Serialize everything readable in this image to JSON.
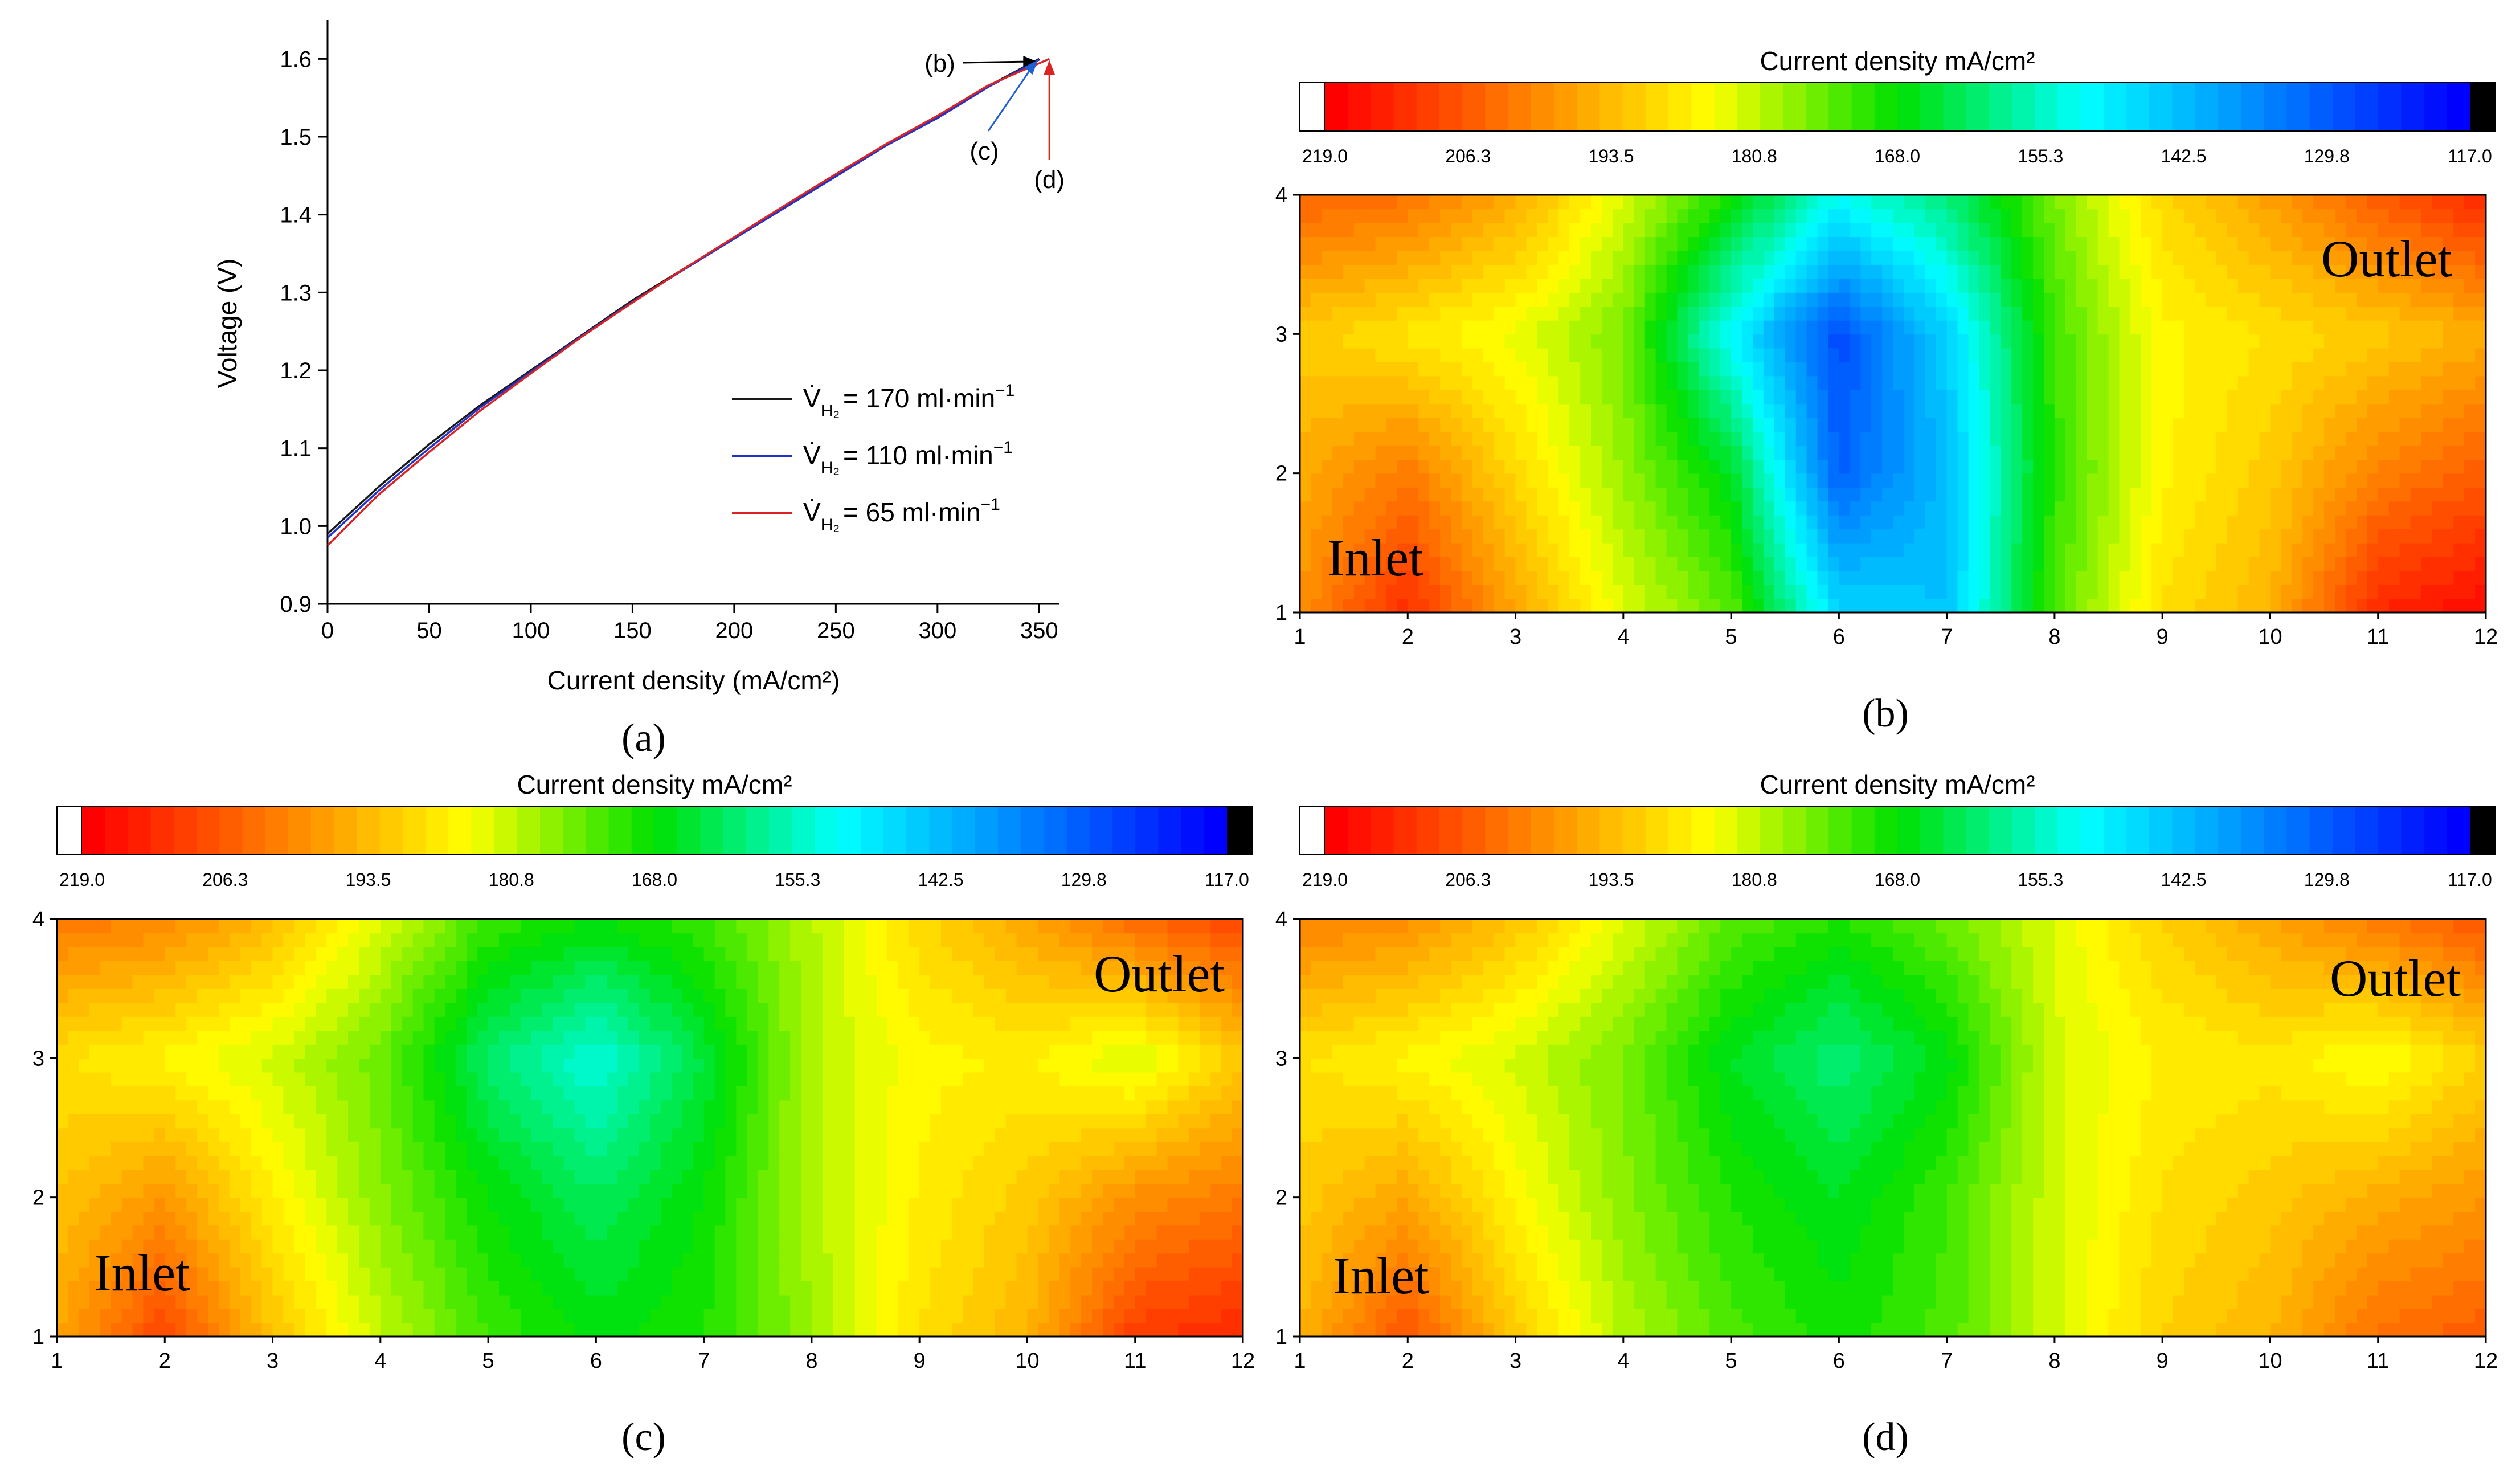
{
  "panels": {
    "a": "(a)",
    "b": "(b)",
    "c": "(c)",
    "d": "(d)"
  },
  "chart_data": [
    {
      "id": "a",
      "type": "line",
      "xlabel": "Current density (mA/cm²)",
      "ylabel": "Voltage (V)",
      "xlim": [
        0,
        360
      ],
      "ylim": [
        0.9,
        1.65
      ],
      "xticks": [
        0,
        50,
        100,
        150,
        200,
        250,
        300,
        350
      ],
      "yticks": [
        0.9,
        1.0,
        1.1,
        1.2,
        1.3,
        1.4,
        1.5,
        1.6
      ],
      "series": [
        {
          "name": "V̇H₂ = 170 ml·min⁻¹",
          "label_main": "= 170 ml·min",
          "color": "#1a1a1a",
          "x": [
            0,
            25,
            50,
            75,
            100,
            125,
            150,
            175,
            200,
            225,
            250,
            275,
            300,
            325,
            350
          ],
          "y": [
            0.99,
            1.05,
            1.105,
            1.155,
            1.2,
            1.245,
            1.29,
            1.33,
            1.37,
            1.41,
            1.45,
            1.49,
            1.525,
            1.565,
            1.6
          ]
        },
        {
          "name": "V̇H₂ = 110 ml·min⁻¹",
          "label_main": "= 110 ml·min",
          "color": "#2233cc",
          "x": [
            0,
            25,
            50,
            75,
            100,
            125,
            150,
            175,
            200,
            225,
            250,
            275,
            300,
            325,
            350
          ],
          "y": [
            0.985,
            1.045,
            1.1,
            1.152,
            1.198,
            1.244,
            1.288,
            1.329,
            1.369,
            1.409,
            1.449,
            1.489,
            1.524,
            1.564,
            1.599
          ]
        },
        {
          "name": "V̇H₂ = 65 ml·min⁻¹",
          "label_main": "= 65 ml·min",
          "color": "#dd2222",
          "x": [
            0,
            25,
            50,
            75,
            100,
            125,
            150,
            175,
            200,
            225,
            250,
            275,
            300,
            325,
            355
          ],
          "y": [
            0.975,
            1.04,
            1.095,
            1.148,
            1.196,
            1.243,
            1.287,
            1.33,
            1.371,
            1.412,
            1.452,
            1.491,
            1.527,
            1.566,
            1.6
          ]
        }
      ],
      "legend_symbol": "V̇",
      "legend_sub": "H₂",
      "legend_sup": "−1",
      "annotations": [
        {
          "text": "(b)",
          "x": 350,
          "y": 1.6,
          "color": "#000000"
        },
        {
          "text": "(c)",
          "x": 350,
          "y": 1.6,
          "color": "#1f5fd6"
        },
        {
          "text": "(d)",
          "x": 355,
          "y": 1.6,
          "color": "#dd2222"
        }
      ]
    },
    {
      "id": "b",
      "type": "heatmap",
      "colorbar_title": "Current density mA/cm²",
      "x": [
        1,
        2,
        3,
        4,
        5,
        6,
        7,
        8,
        9,
        10,
        11,
        12
      ],
      "y": [
        1,
        2,
        3,
        4
      ],
      "inlet_label": "Inlet",
      "outlet_label": "Outlet",
      "values": [
        [
          200,
          213,
          197,
          183,
          174,
          146,
          143,
          173,
          189,
          195,
          214,
          218
        ],
        [
          196,
          203,
          190,
          178,
          166,
          130,
          142,
          171,
          186,
          192,
          202,
          207
        ],
        [
          192,
          188,
          184,
          176,
          150,
          127,
          145,
          172,
          186,
          189,
          192,
          196
        ],
        [
          206,
          204,
          196,
          183,
          169,
          152,
          160,
          176,
          190,
          198,
          207,
          214
        ]
      ]
    },
    {
      "id": "c",
      "type": "heatmap",
      "colorbar_title": "Current density mA/cm²",
      "x": [
        1,
        2,
        3,
        4,
        5,
        6,
        7,
        8,
        9,
        10,
        11,
        12
      ],
      "y": [
        1,
        2,
        3,
        4
      ],
      "inlet_label": "Inlet",
      "outlet_label": "Outlet",
      "values": [
        [
          197,
          210,
          193,
          181,
          172,
          167,
          170,
          178,
          189,
          195,
          211,
          214
        ],
        [
          193,
          199,
          187,
          177,
          168,
          162,
          168,
          180,
          187,
          192,
          200,
          203
        ],
        [
          189,
          186,
          182,
          175,
          161,
          153,
          164,
          180,
          186,
          187,
          182,
          192
        ],
        [
          203,
          201,
          194,
          183,
          172,
          168,
          172,
          180,
          190,
          197,
          205,
          210
        ]
      ]
    },
    {
      "id": "d",
      "type": "heatmap",
      "colorbar_title": "Current density mA/cm²",
      "x": [
        1,
        2,
        3,
        4,
        5,
        6,
        7,
        8,
        9,
        10,
        11,
        12
      ],
      "y": [
        1,
        2,
        3,
        4
      ],
      "inlet_label": "Inlet",
      "outlet_label": "Outlet",
      "values": [
        [
          195,
          208,
          192,
          180,
          173,
          169,
          173,
          182,
          191,
          195,
          204,
          207
        ],
        [
          192,
          197,
          186,
          177,
          170,
          166,
          172,
          182,
          189,
          192,
          196,
          199
        ],
        [
          189,
          186,
          182,
          176,
          166,
          160,
          167,
          182,
          187,
          188,
          184,
          191
        ],
        [
          202,
          200,
          193,
          183,
          174,
          170,
          175,
          183,
          191,
          197,
          203,
          208
        ]
      ]
    }
  ],
  "colorbar": {
    "min": 117.0,
    "max": 219.0,
    "ticks": [
      "219.0",
      "206.3",
      "193.5",
      "180.8",
      "168.0",
      "155.3",
      "142.5",
      "129.8",
      "117.0"
    ],
    "levels": 50,
    "colors": [
      "#ff0000",
      "#ff8000",
      "#ffff00",
      "#00e000",
      "#00ffff",
      "#0080ff",
      "#0000ff"
    ]
  }
}
